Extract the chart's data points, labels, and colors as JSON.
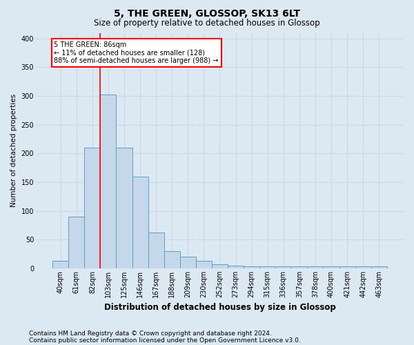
{
  "title": "5, THE GREEN, GLOSSOP, SK13 6LT",
  "subtitle": "Size of property relative to detached houses in Glossop",
  "xlabel": "Distribution of detached houses by size in Glossop",
  "ylabel": "Number of detached properties",
  "footnote1": "Contains HM Land Registry data © Crown copyright and database right 2024.",
  "footnote2": "Contains public sector information licensed under the Open Government Licence v3.0.",
  "categories": [
    "40sqm",
    "61sqm",
    "82sqm",
    "103sqm",
    "125sqm",
    "146sqm",
    "167sqm",
    "188sqm",
    "209sqm",
    "230sqm",
    "252sqm",
    "273sqm",
    "294sqm",
    "315sqm",
    "336sqm",
    "357sqm",
    "378sqm",
    "400sqm",
    "421sqm",
    "442sqm",
    "463sqm"
  ],
  "values": [
    13,
    90,
    210,
    303,
    210,
    160,
    62,
    30,
    20,
    13,
    7,
    5,
    4,
    4,
    4,
    4,
    4,
    4,
    4,
    4,
    4
  ],
  "bar_color": "#c5d8ea",
  "bar_edge_color": "#5b9ec9",
  "grid_color": "#c8d8e8",
  "bg_color": "#dce8f2",
  "red_line_x": 2.5,
  "annotation_line1": "5 THE GREEN: 86sqm",
  "annotation_line2": "← 11% of detached houses are smaller (128)",
  "annotation_line3": "88% of semi-detached houses are larger (988) →",
  "annotation_box_color": "white",
  "annotation_box_edge": "red",
  "ylim": [
    0,
    410
  ],
  "yticks": [
    0,
    50,
    100,
    150,
    200,
    250,
    300,
    350,
    400
  ],
  "title_fontsize": 10,
  "subtitle_fontsize": 8.5,
  "xlabel_fontsize": 8.5,
  "ylabel_fontsize": 7.5,
  "tick_fontsize": 7,
  "footnote_fontsize": 6.5
}
